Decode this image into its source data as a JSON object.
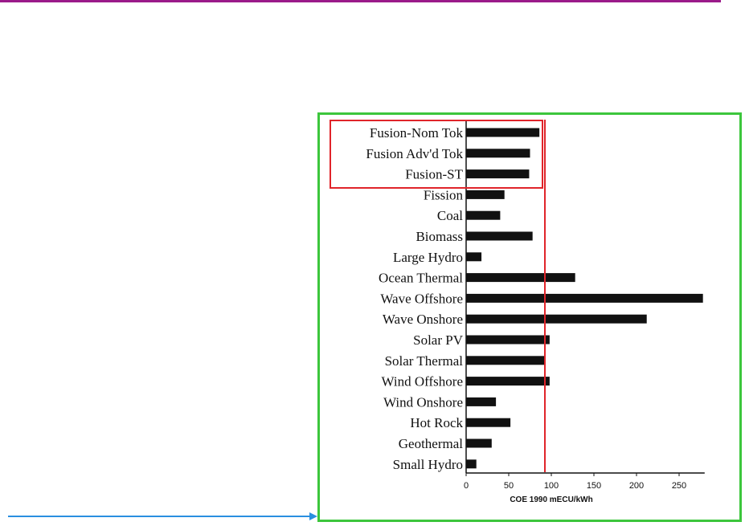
{
  "colors": {
    "top_rule": "#9b1a8a",
    "frame": "#3cc63c",
    "highlight": "#e0242a",
    "arrow": "#2a8fe0",
    "bar": "#111111"
  },
  "chart_data": {
    "type": "bar",
    "orientation": "horizontal",
    "categories": [
      "Fusion-Nom Tok",
      "Fusion Adv'd Tok",
      "Fusion-ST",
      "Fission",
      "Coal",
      "Biomass",
      "Large Hydro",
      "Ocean Thermal",
      "Wave Offshore",
      "Wave Onshore",
      "Solar PV",
      "Solar Thermal",
      "Wind Offshore",
      "Wind Onshore",
      "Hot Rock",
      "Geothermal",
      "Small Hydro"
    ],
    "values": [
      86,
      75,
      74,
      45,
      40,
      78,
      18,
      128,
      278,
      212,
      98,
      93,
      98,
      35,
      52,
      30,
      12
    ],
    "xlabel": "COE 1990 mECU/kWh",
    "xlim": [
      0,
      280
    ],
    "xticks": [
      0,
      50,
      100,
      150,
      200,
      250
    ],
    "reference_line_x": 93,
    "highlighted_categories": [
      "Fusion-Nom Tok",
      "Fusion Adv'd Tok",
      "Fusion-ST"
    ]
  }
}
